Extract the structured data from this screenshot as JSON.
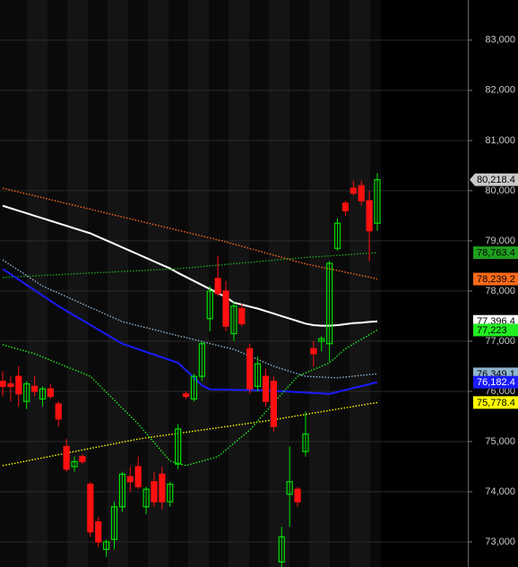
{
  "chart_data": {
    "type": "candlestick",
    "ylim": [
      72500,
      83800
    ],
    "yticks": [
      {
        "value": 73000,
        "label": "73,000"
      },
      {
        "value": 74000,
        "label": "74,000"
      },
      {
        "value": 75000,
        "label": "75,000"
      },
      {
        "value": 76000,
        "label": "76,000"
      },
      {
        "value": 77000,
        "label": "77,000"
      },
      {
        "value": 78000,
        "label": "78,000"
      },
      {
        "value": 79000,
        "label": "79,000"
      },
      {
        "value": 80000,
        "label": "80,000"
      },
      {
        "value": 81000,
        "label": "81,000"
      },
      {
        "value": 82000,
        "label": "82,000"
      },
      {
        "value": 83000,
        "label": "83,000"
      }
    ],
    "grid": true,
    "up_color": "#00e000",
    "down_color": "#ff1010",
    "open": [
      76200,
      76150,
      76300,
      75800,
      76100,
      75850,
      76050,
      75750,
      74900,
      74500,
      74700,
      74150,
      73400,
      72850,
      73050,
      73700,
      74300,
      74500,
      73700,
      74200,
      74350,
      73800,
      74550,
      75950,
      75850,
      76300,
      77450,
      78250,
      78000,
      77150,
      77650,
      76850,
      76100,
      76300,
      76200,
      72600,
      73950,
      74050,
      74800,
      76850,
      77000,
      76950,
      78850,
      79750,
      80050,
      80100,
      79800,
      79350
    ],
    "high": [
      76400,
      76300,
      76500,
      76200,
      76300,
      76100,
      76150,
      75800,
      75050,
      74700,
      74750,
      74200,
      73500,
      73050,
      73800,
      74400,
      74500,
      74700,
      74100,
      74400,
      74500,
      74200,
      75350,
      76000,
      76350,
      77000,
      78100,
      78700,
      78200,
      77800,
      77750,
      76950,
      76700,
      76450,
      76300,
      73300,
      74900,
      74100,
      75600,
      77000,
      77100,
      78600,
      79450,
      79800,
      80200,
      80200,
      80000,
      80350
    ],
    "low": [
      75900,
      75800,
      75700,
      75650,
      75900,
      75700,
      75850,
      75300,
      74400,
      74400,
      74550,
      73100,
      72900,
      72700,
      72850,
      73600,
      74000,
      74050,
      73550,
      73700,
      73650,
      73700,
      74450,
      75850,
      75800,
      76200,
      77200,
      77900,
      77200,
      77000,
      77300,
      75950,
      76000,
      75700,
      75200,
      72500,
      73300,
      73700,
      74700,
      76500,
      76800,
      76600,
      78800,
      79500,
      79900,
      79700,
      78600,
      79200
    ],
    "close": [
      76100,
      76100,
      75950,
      76150,
      76000,
      76050,
      75900,
      75450,
      74450,
      74600,
      74600,
      73200,
      73000,
      73000,
      73700,
      74350,
      74200,
      74100,
      74050,
      73800,
      73800,
      74150,
      75250,
      75900,
      76300,
      76950,
      78000,
      77950,
      77300,
      77700,
      77350,
      76050,
      76550,
      75800,
      75300,
      73100,
      74200,
      73800,
      75150,
      76750,
      77050,
      78550,
      79350,
      79600,
      79950,
      79800,
      79200,
      80218.4
    ],
    "last_close_label": "80,218.4",
    "last_close_label_color": "#c8c8c8",
    "lines": [
      {
        "color": "#ffffff",
        "style": "solid",
        "label_text_color": "#000000",
        "values": [
          79700,
          79650,
          79600,
          79550,
          79500,
          79450,
          79400,
          79350,
          79300,
          79250,
          79200,
          79150,
          79080,
          79010,
          78940,
          78870,
          78800,
          78730,
          78660,
          78590,
          78520,
          78450,
          78360,
          78280,
          78200,
          78120,
          78040,
          77960,
          77880,
          77770,
          77730,
          77690,
          77650,
          77600,
          77550,
          77500,
          77450,
          77400,
          77350,
          77320,
          77310,
          77310,
          77320,
          77340,
          77360,
          77370,
          77385,
          77396.4
        ],
        "last_label": "77,396.4"
      },
      {
        "color": "#ff6a1a",
        "style": "dotted",
        "label_text_color": "#000000",
        "values": [
          80050,
          80012,
          79974,
          79935,
          79897,
          79859,
          79821,
          79783,
          79745,
          79706,
          79668,
          79630,
          79592,
          79554,
          79516,
          79477,
          79439,
          79401,
          79363,
          79325,
          79287,
          79248,
          79210,
          79172,
          79134,
          79096,
          79058,
          79019,
          78980,
          78936,
          78892,
          78848,
          78804,
          78760,
          78716,
          78672,
          78628,
          78584,
          78540,
          78507,
          78474,
          78441,
          78408,
          78375,
          78342,
          78309,
          78276,
          78239.2
        ],
        "last_label": "78,239.2"
      },
      {
        "color": "#1fa01f",
        "style": "dotted",
        "label_text_color": "#000000",
        "values": [
          78270,
          78278,
          78286,
          78294,
          78302,
          78310,
          78318,
          78326,
          78334,
          78342,
          78350,
          78358,
          78366,
          78374,
          78382,
          78390,
          78398,
          78406,
          78414,
          78422,
          78430,
          78438,
          78446,
          78460,
          78474,
          78488,
          78502,
          78516,
          78530,
          78544,
          78558,
          78572,
          78586,
          78600,
          78614,
          78628,
          78642,
          78656,
          78667,
          78678,
          78689,
          78700,
          78711,
          78722,
          78733,
          78744,
          78755,
          78763.4
        ],
        "last_label": "78,763.4"
      },
      {
        "color": "#8fb4d0",
        "style": "dotted",
        "label_text_color": "#000000",
        "values": [
          78620,
          78516,
          78412,
          78308,
          78204,
          78100,
          78029,
          77958,
          77887,
          77816,
          77745,
          77674,
          77603,
          77532,
          77461,
          77390,
          77350,
          77310,
          77270,
          77230,
          77190,
          77150,
          77110,
          77071,
          77032,
          76993,
          76954,
          76915,
          76876,
          76840,
          76772,
          76704,
          76636,
          76568,
          76500,
          76450,
          76400,
          76350,
          76300,
          76292,
          76285,
          76278,
          76270,
          76286,
          76302,
          76318,
          76334,
          76349.1
        ],
        "last_label": "76,349.1"
      },
      {
        "color": "#1a1aff",
        "style": "solid",
        "label_text_color": "#ffffff",
        "values": [
          78440,
          78334,
          78229,
          78123,
          78017,
          77911,
          77806,
          77700,
          77606,
          77513,
          77419,
          77325,
          77231,
          77138,
          77044,
          76950,
          76896,
          76841,
          76787,
          76733,
          76679,
          76624,
          76570,
          76420,
          76270,
          76120,
          76040,
          76037,
          76034,
          76031,
          76029,
          76026,
          76023,
          76020,
          76011,
          76002,
          75993,
          75985,
          75976,
          75967,
          75958,
          75950,
          75989,
          76027,
          76066,
          76105,
          76143,
          76182.4
        ],
        "last_label": "76,182.4"
      },
      {
        "color": "#ffff00",
        "style": "dotted",
        "label_text_color": "#000000",
        "values": [
          74520,
          74551,
          74582,
          74614,
          74645,
          74676,
          74707,
          74738,
          74770,
          74801,
          74832,
          74863,
          74894,
          74926,
          74957,
          74988,
          75019,
          75050,
          75073,
          75095,
          75118,
          75140,
          75163,
          75185,
          75208,
          75230,
          75253,
          75275,
          75298,
          75320,
          75343,
          75365,
          75388,
          75410,
          75436,
          75463,
          75489,
          75515,
          75541,
          75568,
          75594,
          75620,
          75647,
          75673,
          75699,
          75725,
          75752,
          75778.4
        ],
        "last_label": "75,778.4"
      },
      {
        "color": "#22ee22",
        "style": "dotted",
        "label_text_color": "#000000",
        "values": [
          76930,
          76885,
          76840,
          76795,
          76750,
          76686,
          76621,
          76557,
          76493,
          76429,
          76364,
          76300,
          76142,
          75983,
          75825,
          75667,
          75508,
          75350,
          75165,
          74980,
          74795,
          74610,
          74565,
          74520,
          74565,
          74610,
          74655,
          74700,
          74833,
          74965,
          75098,
          75230,
          75410,
          75590,
          75770,
          75950,
          76125,
          76300,
          76368,
          76435,
          76503,
          76570,
          76710,
          76850,
          76943,
          77037,
          77130,
          77223
        ],
        "last_label": "77,223"
      }
    ]
  }
}
